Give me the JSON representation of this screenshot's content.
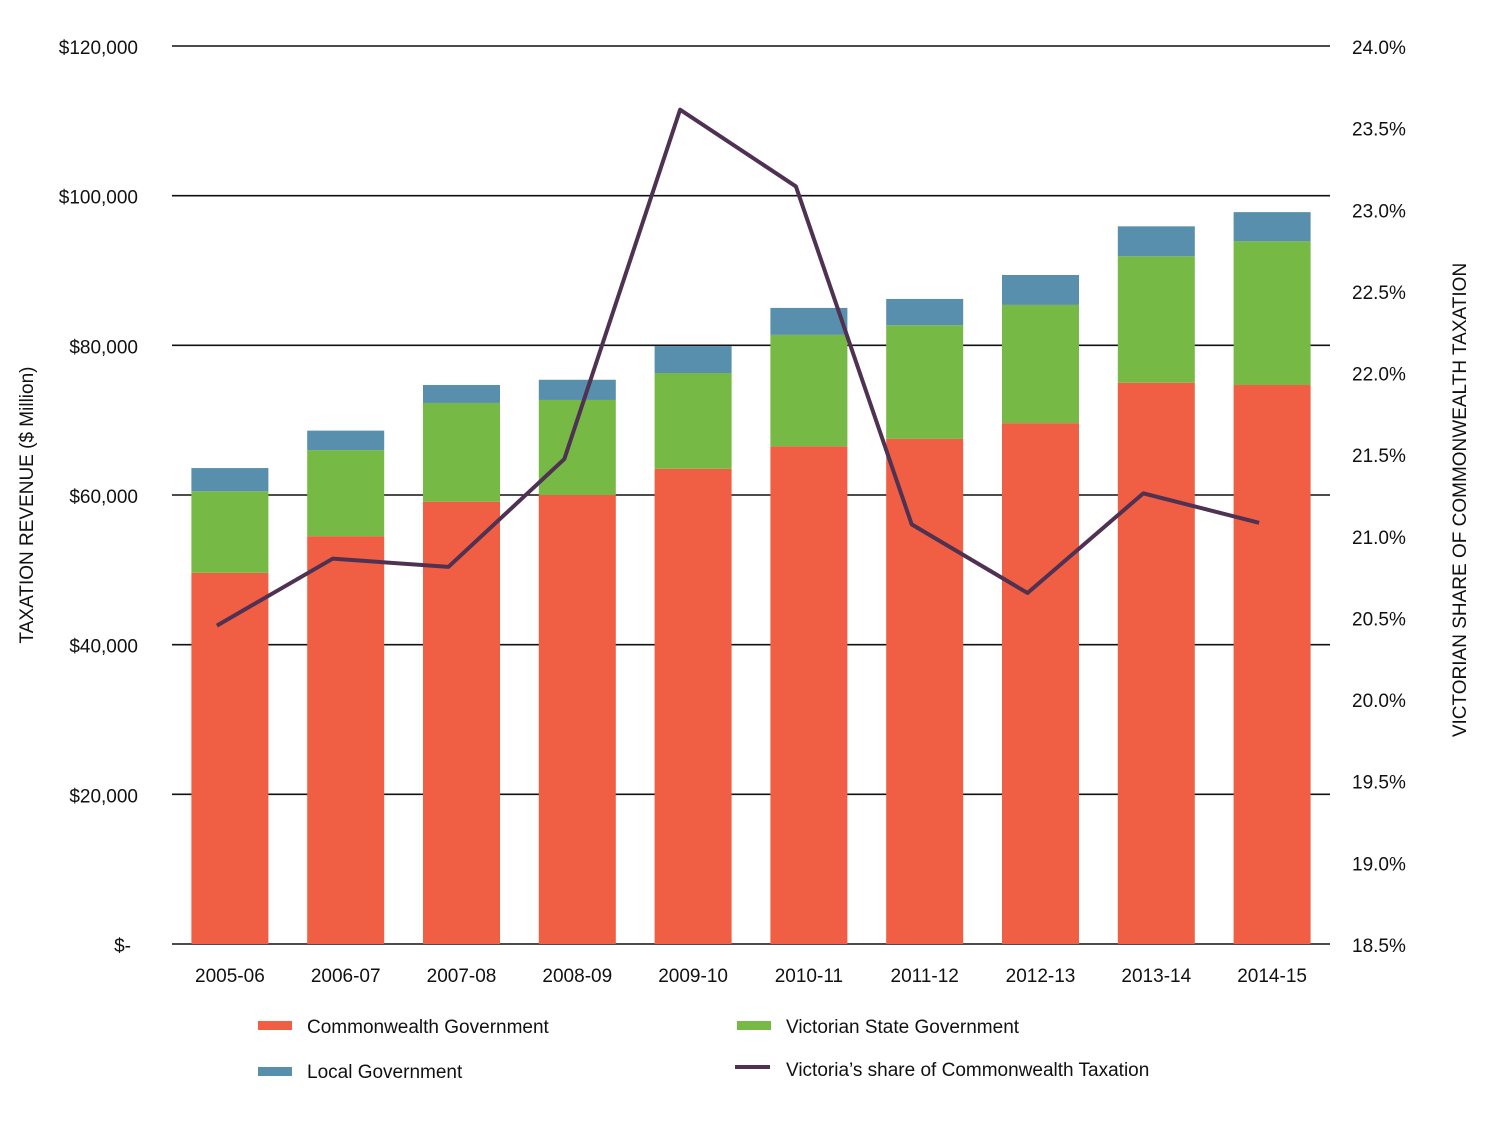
{
  "chart_data": {
    "type": "bar",
    "stacked": true,
    "categories": [
      "2005-06",
      "2006-07",
      "2007-08",
      "2008-09",
      "2009-10",
      "2010-11",
      "2011-12",
      "2012-13",
      "2013-14",
      "2014-15"
    ],
    "series": [
      {
        "name": "Commonwealth Government",
        "color": "#f05f43",
        "values": [
          49600,
          54500,
          59100,
          60000,
          63500,
          66500,
          67500,
          69600,
          75000,
          74700
        ]
      },
      {
        "name": "Victorian State Government",
        "color": "#76b944",
        "values": [
          10900,
          11500,
          13200,
          12700,
          12800,
          14900,
          15200,
          15800,
          16900,
          19200
        ]
      },
      {
        "name": "Local Government",
        "color": "#578fad",
        "values": [
          3100,
          2600,
          2400,
          2700,
          3600,
          3600,
          3500,
          4000,
          4000,
          3900
        ]
      }
    ],
    "line_series": {
      "name": "Victoria’s share of Commonwealth Taxation",
      "color": "#4f3252",
      "axis": "right",
      "values": [
        20.45,
        20.86,
        20.81,
        21.47,
        23.61,
        23.14,
        21.07,
        20.65,
        21.26,
        21.08
      ]
    },
    "ylabel": "TAXATION REVENUE ($ Million)",
    "ylabel_right": "VICTORIAN SHARE OF COMMONWEALTH TAXATION",
    "ylim": [
      0,
      120000
    ],
    "ylim_right": [
      18.5,
      24.0
    ],
    "yticks": [
      "$-",
      "$20,000",
      "$40,000",
      "$60,000",
      "$80,000",
      "$100,000",
      "$120,000"
    ],
    "yticks_right": [
      "18.5%",
      "19.0%",
      "19.5%",
      "20.0%",
      "20.5%",
      "21.0%",
      "21.5%",
      "22.0%",
      "22.5%",
      "23.0%",
      "23.5%",
      "24.0%"
    ],
    "grid": true,
    "legend_position": "bottom"
  }
}
